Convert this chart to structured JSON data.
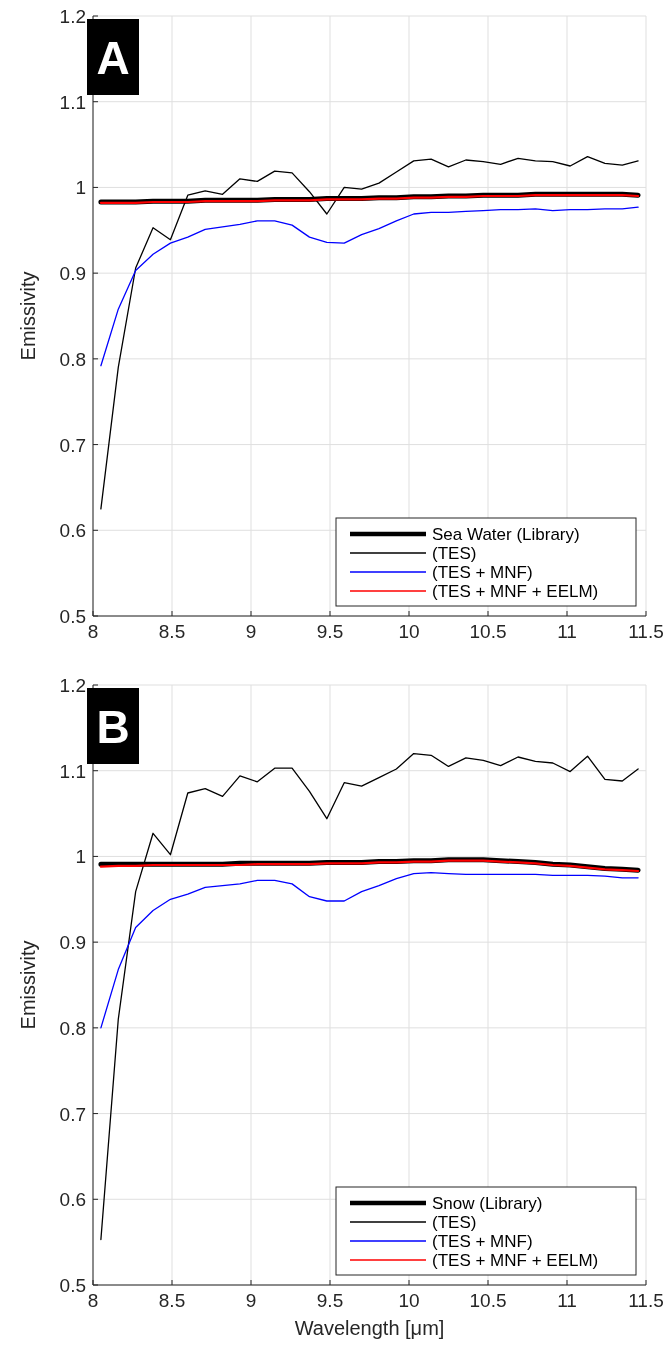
{
  "chart_data": [
    {
      "type": "line",
      "title": "A",
      "ylabel": "Emissivity",
      "x": [
        8.05,
        8.16,
        8.27,
        8.38,
        8.49,
        8.6,
        8.71,
        8.82,
        8.93,
        9.04,
        9.15,
        9.26,
        9.37,
        9.48,
        9.59,
        9.7,
        9.81,
        9.92,
        10.03,
        10.14,
        10.25,
        10.36,
        10.47,
        10.58,
        10.69,
        10.8,
        10.91,
        11.02,
        11.13,
        11.24,
        11.35,
        11.45
      ],
      "series": [
        {
          "name": "Sea Water (Library)",
          "color": "#000000",
          "values": [
            0.983,
            0.983,
            0.983,
            0.984,
            0.984,
            0.984,
            0.985,
            0.985,
            0.985,
            0.985,
            0.986,
            0.986,
            0.986,
            0.987,
            0.987,
            0.987,
            0.988,
            0.988,
            0.989,
            0.989,
            0.99,
            0.99,
            0.991,
            0.991,
            0.991,
            0.992,
            0.992,
            0.992,
            0.992,
            0.992,
            0.992,
            0.991
          ]
        },
        {
          "name": "(TES)",
          "color": "#000000",
          "values": [
            0.625,
            0.79,
            0.906,
            0.953,
            0.939,
            0.991,
            0.996,
            0.992,
            1.01,
            1.007,
            1.019,
            1.017,
            0.995,
            0.969,
            1.0,
            0.998,
            1.005,
            1.018,
            1.031,
            1.033,
            1.024,
            1.032,
            1.03,
            1.027,
            1.034,
            1.031,
            1.03,
            1.025,
            1.036,
            1.028,
            1.026,
            1.031
          ]
        },
        {
          "name": "(TES + MNF)",
          "color": "#0000ff",
          "values": [
            0.792,
            0.858,
            0.903,
            0.922,
            0.935,
            0.942,
            0.951,
            0.954,
            0.957,
            0.961,
            0.961,
            0.956,
            0.942,
            0.936,
            0.935,
            0.945,
            0.952,
            0.961,
            0.969,
            0.971,
            0.971,
            0.972,
            0.973,
            0.974,
            0.974,
            0.975,
            0.973,
            0.974,
            0.974,
            0.975,
            0.975,
            0.977
          ]
        },
        {
          "name": "(TES + MNF + EELM)",
          "color": "#ff0000",
          "values": [
            0.982,
            0.982,
            0.982,
            0.983,
            0.983,
            0.983,
            0.984,
            0.984,
            0.984,
            0.984,
            0.985,
            0.985,
            0.985,
            0.986,
            0.986,
            0.986,
            0.987,
            0.987,
            0.988,
            0.988,
            0.989,
            0.989,
            0.99,
            0.99,
            0.99,
            0.991,
            0.991,
            0.991,
            0.991,
            0.991,
            0.991,
            0.99
          ]
        }
      ],
      "xlim": [
        8,
        11.5
      ],
      "xticks": [
        8,
        8.5,
        9,
        9.5,
        10,
        10.5,
        11,
        11.5
      ],
      "ylim": [
        0.5,
        1.2
      ],
      "yticks": [
        0.5,
        0.6,
        0.7,
        0.8,
        0.9,
        1,
        1.1,
        1.2
      ],
      "grid": true,
      "legend": "bottom right",
      "line_style": "solid",
      "marker": "none"
    },
    {
      "type": "line",
      "title": "B",
      "xlabel": "Wavelength [μm]",
      "ylabel": "Emissivity",
      "x": [
        8.05,
        8.16,
        8.27,
        8.38,
        8.49,
        8.6,
        8.71,
        8.82,
        8.93,
        9.04,
        9.15,
        9.26,
        9.37,
        9.48,
        9.59,
        9.7,
        9.81,
        9.92,
        10.03,
        10.14,
        10.25,
        10.36,
        10.47,
        10.58,
        10.69,
        10.8,
        10.91,
        11.02,
        11.13,
        11.24,
        11.35,
        11.45
      ],
      "series": [
        {
          "name": "Snow (Library)",
          "color": "#000000",
          "values": [
            0.991,
            0.991,
            0.991,
            0.991,
            0.991,
            0.991,
            0.991,
            0.991,
            0.992,
            0.992,
            0.992,
            0.992,
            0.992,
            0.993,
            0.993,
            0.993,
            0.994,
            0.994,
            0.995,
            0.995,
            0.996,
            0.996,
            0.996,
            0.995,
            0.994,
            0.993,
            0.991,
            0.99,
            0.988,
            0.986,
            0.985,
            0.984
          ]
        },
        {
          "name": "(TES)",
          "color": "#000000",
          "values": [
            0.553,
            0.81,
            0.959,
            1.027,
            1.002,
            1.074,
            1.079,
            1.07,
            1.094,
            1.087,
            1.103,
            1.103,
            1.076,
            1.044,
            1.086,
            1.082,
            1.092,
            1.102,
            1.12,
            1.118,
            1.105,
            1.115,
            1.112,
            1.106,
            1.116,
            1.111,
            1.109,
            1.099,
            1.117,
            1.09,
            1.088,
            1.102
          ]
        },
        {
          "name": "(TES + MNF)",
          "color": "#0000ff",
          "values": [
            0.8,
            0.868,
            0.917,
            0.937,
            0.95,
            0.956,
            0.964,
            0.966,
            0.968,
            0.972,
            0.972,
            0.968,
            0.953,
            0.948,
            0.948,
            0.959,
            0.966,
            0.974,
            0.98,
            0.981,
            0.98,
            0.979,
            0.979,
            0.979,
            0.979,
            0.979,
            0.978,
            0.978,
            0.978,
            0.977,
            0.975,
            0.975
          ]
        },
        {
          "name": "(TES + MNF + EELM)",
          "color": "#ff0000",
          "values": [
            0.988,
            0.989,
            0.989,
            0.99,
            0.99,
            0.99,
            0.99,
            0.99,
            0.99,
            0.991,
            0.991,
            0.991,
            0.991,
            0.992,
            0.992,
            0.992,
            0.993,
            0.993,
            0.994,
            0.994,
            0.995,
            0.995,
            0.995,
            0.994,
            0.993,
            0.992,
            0.99,
            0.989,
            0.987,
            0.985,
            0.984,
            0.983
          ]
        }
      ],
      "xlim": [
        8,
        11.5
      ],
      "xticks": [
        8,
        8.5,
        9,
        9.5,
        10,
        10.5,
        11,
        11.5
      ],
      "ylim": [
        0.5,
        1.2
      ],
      "yticks": [
        0.5,
        0.6,
        0.7,
        0.8,
        0.9,
        1,
        1.1,
        1.2
      ],
      "grid": true,
      "legend": "bottom right",
      "line_style": "solid",
      "marker": "none"
    }
  ]
}
